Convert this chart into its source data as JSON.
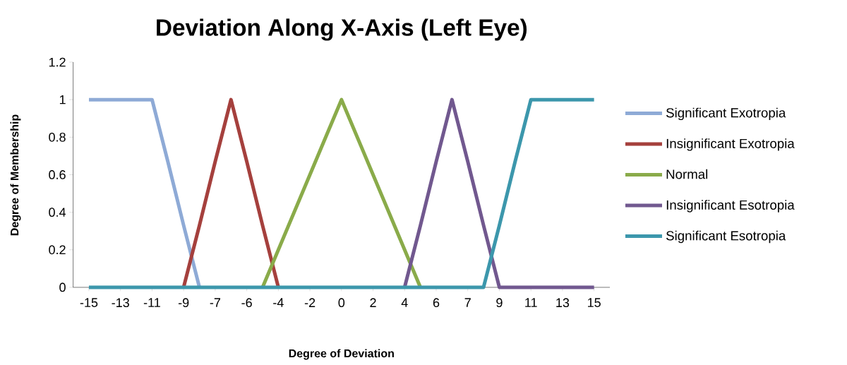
{
  "chart_data": {
    "type": "line",
    "title": "Deviation Along X-Axis (Left Eye)",
    "xlabel": "Degree of Deviation",
    "ylabel": "Degree of Membership",
    "categories": [
      "-15",
      null,
      "-13",
      null,
      "-11",
      null,
      "-9",
      null,
      "-7",
      null,
      "-6",
      null,
      "-4",
      null,
      "-2",
      null,
      "0",
      null,
      "2",
      null,
      "4",
      null,
      "6",
      null,
      "7",
      null,
      "9",
      null,
      "11",
      null,
      "13",
      null,
      "15"
    ],
    "series": [
      {
        "name": "Significant Exotropia",
        "color": "#8eaad6",
        "values": [
          1,
          1,
          1,
          1,
          1,
          0.67,
          0.33,
          0,
          null,
          null,
          null,
          null,
          null,
          null,
          null,
          null,
          null,
          null,
          null,
          null,
          null,
          null,
          null,
          null,
          null,
          null,
          null,
          null,
          null,
          null,
          null,
          null,
          null
        ]
      },
      {
        "name": "Insignificant Exotropia",
        "color": "#a5403d",
        "values": [
          null,
          null,
          null,
          null,
          null,
          null,
          0,
          0.33,
          0.67,
          1,
          0.67,
          0.33,
          0,
          null,
          null,
          null,
          null,
          null,
          null,
          null,
          null,
          null,
          null,
          null,
          null,
          null,
          null,
          null,
          null,
          null,
          null,
          null,
          null
        ]
      },
      {
        "name": "Normal",
        "color": "#8aab4a",
        "values": [
          null,
          null,
          null,
          null,
          null,
          null,
          null,
          null,
          null,
          null,
          null,
          0,
          0.2,
          0.4,
          0.6,
          0.8,
          1,
          0.8,
          0.6,
          0.4,
          0.2,
          0,
          null,
          null,
          null,
          null,
          null,
          null,
          null,
          null,
          null,
          null,
          null
        ]
      },
      {
        "name": "Insignificant Esotropia",
        "color": "#71588f",
        "values": [
          null,
          null,
          null,
          null,
          null,
          null,
          null,
          null,
          null,
          null,
          null,
          null,
          null,
          null,
          null,
          null,
          null,
          null,
          null,
          null,
          0,
          0.33,
          0.67,
          1,
          0.67,
          0.33,
          0,
          0,
          0,
          0,
          0,
          0,
          0
        ]
      },
      {
        "name": "Significant Esotropia",
        "color": "#3c97ac",
        "values": [
          0,
          0,
          0,
          0,
          0,
          0,
          0,
          0,
          0,
          0,
          0,
          0,
          0,
          0,
          0,
          0,
          0,
          0,
          0,
          0,
          0,
          0,
          0,
          0,
          0,
          0,
          0.33,
          0.67,
          1,
          1,
          1,
          1,
          1
        ]
      }
    ],
    "ylim": [
      0,
      1.2
    ],
    "yticks": [
      0,
      0.2,
      0.4,
      0.6,
      0.8,
      1,
      1.2
    ],
    "legend": "right"
  }
}
